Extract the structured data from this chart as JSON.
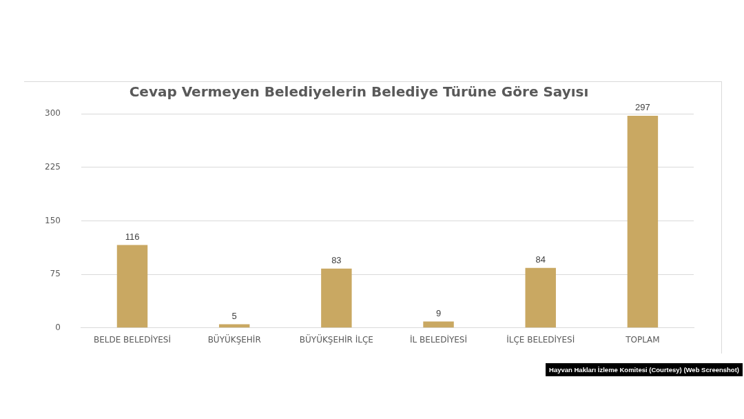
{
  "chart_data": {
    "type": "bar",
    "title": "Cevap Vermeyen Belediyelerin Belediye Türüne Göre Sayısı",
    "categories": [
      "BELDE BELEDİYESİ",
      "BÜYÜKŞEHİR",
      "BÜYÜKŞEHİR İLÇE",
      "İL BELEDİYESİ",
      "İLÇE BELEDİYESİ",
      "TOPLAM"
    ],
    "values": [
      116,
      5,
      83,
      9,
      84,
      297
    ],
    "color": "#c9a862",
    "ylim": [
      0,
      300
    ],
    "yticks": [
      0,
      75,
      150,
      225,
      300
    ],
    "grid": "y",
    "data_labels": true,
    "annotations": [
      "Hayvan Hakları İzleme Komitesi (Courtesy) (Web Screenshot)"
    ]
  }
}
